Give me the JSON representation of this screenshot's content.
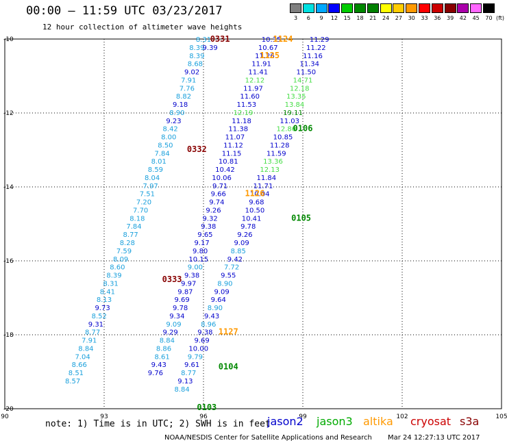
{
  "title": "00:00 – 11:59 UTC 03/23/2017",
  "subtitle": "12 hour collection of altimeter wave heights",
  "colorbar": {
    "labels": [
      "3",
      "6",
      "9",
      "12",
      "15",
      "18",
      "21",
      "24",
      "27",
      "30",
      "33",
      "36",
      "39",
      "42",
      "45",
      "70"
    ],
    "colors": [
      "#808080",
      "#00e0e0",
      "#00a8ff",
      "#0000ff",
      "#00cc00",
      "#008800",
      "#008000",
      "#ffff00",
      "#ffcc00",
      "#ff9900",
      "#ff0000",
      "#cc0000",
      "#880000",
      "#aa00aa",
      "#ff66ff",
      "#000000"
    ],
    "unit": "(ft)"
  },
  "note": "note: 1) Time is in UTC; 2) SWH is in feet",
  "legend": [
    {
      "name": "jason2",
      "color": "#0000cc"
    },
    {
      "name": "jason3",
      "color": "#00aa00"
    },
    {
      "name": "altika",
      "color": "#ff9900"
    },
    {
      "name": "cryosat",
      "color": "#cc0000"
    },
    {
      "name": "s3a",
      "color": "#880000"
    }
  ],
  "footer_center": "NOAA/NESDIS Center for Satellite Applications and Research",
  "footer_right": "Mar 24 12:27:13 UTC 2017",
  "chart_data": {
    "type": "scatter",
    "title": "00:00 – 11:59 UTC 03/23/2017",
    "subtitle": "12 hour collection of altimeter wave heights",
    "xlabel": "",
    "ylabel": "",
    "xlim": [
      90,
      105
    ],
    "ylim": [
      -20,
      -10
    ],
    "xticks": [
      90,
      93,
      96,
      99,
      102,
      105
    ],
    "yticks": [
      -10,
      -12,
      -14,
      -16,
      -18,
      -20
    ],
    "xtick_labels": [
      "90",
      "93",
      "96",
      "99",
      "102",
      "105"
    ],
    "ytick_labels": [
      "-10",
      "-12",
      "-14",
      "-16",
      "-18",
      "-20"
    ],
    "grid": true,
    "point_colors": {
      "j2": "#0000cc",
      "j3": "#44dd44",
      "cyan": "#1aa0dc",
      "alt": "#ff9900"
    },
    "points": [
      {
        "x": 96.0,
        "y": -10.0,
        "v": "8.31",
        "c": "cyan"
      },
      {
        "x": 95.8,
        "y": -10.22,
        "v": "8.39",
        "c": "cyan"
      },
      {
        "x": 95.8,
        "y": -10.44,
        "v": "8.39",
        "c": "cyan"
      },
      {
        "x": 95.75,
        "y": -10.66,
        "v": "8.68",
        "c": "cyan"
      },
      {
        "x": 95.65,
        "y": -10.88,
        "v": "9.02",
        "c": "j2"
      },
      {
        "x": 95.55,
        "y": -11.1,
        "v": "7.91",
        "c": "cyan"
      },
      {
        "x": 95.5,
        "y": -11.32,
        "v": "7.76",
        "c": "cyan"
      },
      {
        "x": 95.4,
        "y": -11.54,
        "v": "8.82",
        "c": "cyan"
      },
      {
        "x": 95.3,
        "y": -11.76,
        "v": "9.18",
        "c": "j2"
      },
      {
        "x": 95.2,
        "y": -11.98,
        "v": "8.90",
        "c": "cyan"
      },
      {
        "x": 95.1,
        "y": -12.2,
        "v": "9.23",
        "c": "j2"
      },
      {
        "x": 95.0,
        "y": -12.42,
        "v": "8.42",
        "c": "cyan"
      },
      {
        "x": 94.95,
        "y": -12.64,
        "v": "8.00",
        "c": "cyan"
      },
      {
        "x": 94.85,
        "y": -12.86,
        "v": "8.50",
        "c": "cyan"
      },
      {
        "x": 94.75,
        "y": -13.08,
        "v": "7.84",
        "c": "cyan"
      },
      {
        "x": 94.65,
        "y": -13.3,
        "v": "8.01",
        "c": "cyan"
      },
      {
        "x": 94.55,
        "y": -13.52,
        "v": "8.59",
        "c": "cyan"
      },
      {
        "x": 94.45,
        "y": -13.74,
        "v": "8.04",
        "c": "cyan"
      },
      {
        "x": 94.4,
        "y": -13.96,
        "v": "7.97",
        "c": "cyan"
      },
      {
        "x": 94.3,
        "y": -14.18,
        "v": "7.51",
        "c": "cyan"
      },
      {
        "x": 94.2,
        "y": -14.4,
        "v": "7.20",
        "c": "cyan"
      },
      {
        "x": 94.1,
        "y": -14.62,
        "v": "7.70",
        "c": "cyan"
      },
      {
        "x": 94.0,
        "y": -14.84,
        "v": "8.18",
        "c": "cyan"
      },
      {
        "x": 93.9,
        "y": -15.06,
        "v": "7.84",
        "c": "cyan"
      },
      {
        "x": 93.8,
        "y": -15.28,
        "v": "8.77",
        "c": "cyan"
      },
      {
        "x": 93.7,
        "y": -15.5,
        "v": "8.28",
        "c": "cyan"
      },
      {
        "x": 93.6,
        "y": -15.72,
        "v": "7.59",
        "c": "cyan"
      },
      {
        "x": 93.5,
        "y": -15.94,
        "v": "8.09",
        "c": "cyan"
      },
      {
        "x": 93.4,
        "y": -16.16,
        "v": "8.60",
        "c": "cyan"
      },
      {
        "x": 93.3,
        "y": -16.38,
        "v": "8.39",
        "c": "cyan"
      },
      {
        "x": 93.2,
        "y": -16.6,
        "v": "8.31",
        "c": "cyan"
      },
      {
        "x": 93.1,
        "y": -16.82,
        "v": "8.41",
        "c": "cyan"
      },
      {
        "x": 93.0,
        "y": -17.04,
        "v": "8.13",
        "c": "cyan"
      },
      {
        "x": 92.95,
        "y": -17.26,
        "v": "9.73",
        "c": "j2"
      },
      {
        "x": 92.85,
        "y": -17.48,
        "v": "8.52",
        "c": "cyan"
      },
      {
        "x": 92.75,
        "y": -17.7,
        "v": "9.31",
        "c": "j2"
      },
      {
        "x": 92.65,
        "y": -17.92,
        "v": "8.77",
        "c": "cyan"
      },
      {
        "x": 92.55,
        "y": -18.14,
        "v": "7.91",
        "c": "cyan"
      },
      {
        "x": 92.45,
        "y": -18.36,
        "v": "8.84",
        "c": "cyan"
      },
      {
        "x": 92.35,
        "y": -18.58,
        "v": "7.04",
        "c": "cyan"
      },
      {
        "x": 92.25,
        "y": -18.8,
        "v": "8.66",
        "c": "cyan"
      },
      {
        "x": 92.15,
        "y": -19.02,
        "v": "8.51",
        "c": "cyan"
      },
      {
        "x": 92.05,
        "y": -19.24,
        "v": "8.57",
        "c": "cyan"
      },
      {
        "x": 96.2,
        "y": -10.22,
        "v": "9.39",
        "c": "j2"
      },
      {
        "x": 98.05,
        "y": -10.0,
        "v": "10.35",
        "c": "j2"
      },
      {
        "x": 97.95,
        "y": -10.22,
        "v": "10.67",
        "c": "j2"
      },
      {
        "x": 97.85,
        "y": -10.44,
        "v": "11.26",
        "c": "j2"
      },
      {
        "x": 97.75,
        "y": -10.66,
        "v": "11.91",
        "c": "j2"
      },
      {
        "x": 97.65,
        "y": -10.88,
        "v": "11.41",
        "c": "j2"
      },
      {
        "x": 97.55,
        "y": -11.1,
        "v": "12.12",
        "c": "j3"
      },
      {
        "x": 97.5,
        "y": -11.32,
        "v": "11.97",
        "c": "j2"
      },
      {
        "x": 97.4,
        "y": -11.54,
        "v": "11.60",
        "c": "j2"
      },
      {
        "x": 97.3,
        "y": -11.76,
        "v": "11.53",
        "c": "j2"
      },
      {
        "x": 97.2,
        "y": -11.98,
        "v": "12.19",
        "c": "j3"
      },
      {
        "x": 97.15,
        "y": -12.2,
        "v": "11.18",
        "c": "j2"
      },
      {
        "x": 97.05,
        "y": -12.42,
        "v": "11.38",
        "c": "j2"
      },
      {
        "x": 96.95,
        "y": -12.64,
        "v": "11.07",
        "c": "j2"
      },
      {
        "x": 96.9,
        "y": -12.86,
        "v": "11.12",
        "c": "j2"
      },
      {
        "x": 96.85,
        "y": -13.08,
        "v": "11.15",
        "c": "j2"
      },
      {
        "x": 96.75,
        "y": -13.3,
        "v": "10.81",
        "c": "j2"
      },
      {
        "x": 96.65,
        "y": -13.52,
        "v": "10.42",
        "c": "j2"
      },
      {
        "x": 96.55,
        "y": -13.74,
        "v": "10.06",
        "c": "j2"
      },
      {
        "x": 96.5,
        "y": -13.96,
        "v": "9.71",
        "c": "j2"
      },
      {
        "x": 96.45,
        "y": -14.18,
        "v": "9.66",
        "c": "j2"
      },
      {
        "x": 96.4,
        "y": -14.4,
        "v": "9.74",
        "c": "j2"
      },
      {
        "x": 96.3,
        "y": -14.62,
        "v": "9.26",
        "c": "j2"
      },
      {
        "x": 96.2,
        "y": -14.84,
        "v": "9.32",
        "c": "j2"
      },
      {
        "x": 96.15,
        "y": -15.06,
        "v": "9.38",
        "c": "j2"
      },
      {
        "x": 96.05,
        "y": -15.28,
        "v": "9.65",
        "c": "j2"
      },
      {
        "x": 95.95,
        "y": -15.5,
        "v": "9.17",
        "c": "j2"
      },
      {
        "x": 95.9,
        "y": -15.72,
        "v": "9.80",
        "c": "j2"
      },
      {
        "x": 95.85,
        "y": -15.94,
        "v": "10.15",
        "c": "j2"
      },
      {
        "x": 95.75,
        "y": -16.16,
        "v": "9.00",
        "c": "cyan"
      },
      {
        "x": 95.65,
        "y": -16.38,
        "v": "9.38",
        "c": "j2"
      },
      {
        "x": 95.55,
        "y": -16.6,
        "v": "9.97",
        "c": "j2"
      },
      {
        "x": 95.45,
        "y": -16.82,
        "v": "9.87",
        "c": "j2"
      },
      {
        "x": 95.35,
        "y": -17.04,
        "v": "9.69",
        "c": "j2"
      },
      {
        "x": 95.3,
        "y": -17.26,
        "v": "9.78",
        "c": "j2"
      },
      {
        "x": 95.2,
        "y": -17.48,
        "v": "9.34",
        "c": "j2"
      },
      {
        "x": 95.1,
        "y": -17.7,
        "v": "9.09",
        "c": "cyan"
      },
      {
        "x": 95.0,
        "y": -17.92,
        "v": "9.29",
        "c": "j2"
      },
      {
        "x": 94.9,
        "y": -18.14,
        "v": "8.84",
        "c": "cyan"
      },
      {
        "x": 94.8,
        "y": -18.36,
        "v": "8.86",
        "c": "cyan"
      },
      {
        "x": 94.75,
        "y": -18.58,
        "v": "8.61",
        "c": "cyan"
      },
      {
        "x": 94.65,
        "y": -18.8,
        "v": "9.43",
        "c": "j2"
      },
      {
        "x": 94.55,
        "y": -19.02,
        "v": "9.76",
        "c": "j2"
      },
      {
        "x": 99.5,
        "y": -10.0,
        "v": "11.29",
        "c": "j2"
      },
      {
        "x": 99.4,
        "y": -10.22,
        "v": "11.22",
        "c": "j2"
      },
      {
        "x": 99.3,
        "y": -10.44,
        "v": "11.16",
        "c": "j2"
      },
      {
        "x": 99.2,
        "y": -10.66,
        "v": "11.34",
        "c": "j2"
      },
      {
        "x": 99.1,
        "y": -10.88,
        "v": "11.50",
        "c": "j2"
      },
      {
        "x": 99.0,
        "y": -11.1,
        "v": "14.71",
        "c": "j3"
      },
      {
        "x": 98.9,
        "y": -11.32,
        "v": "12.18",
        "c": "j3"
      },
      {
        "x": 98.8,
        "y": -11.54,
        "v": "13.35",
        "c": "j3"
      },
      {
        "x": 98.75,
        "y": -11.76,
        "v": "13.84",
        "c": "j3"
      },
      {
        "x": 98.7,
        "y": -11.98,
        "v": "19.11",
        "c": "j3dark"
      },
      {
        "x": 98.6,
        "y": -12.2,
        "v": "11.03",
        "c": "j2"
      },
      {
        "x": 98.5,
        "y": -12.42,
        "v": "12.86",
        "c": "j3"
      },
      {
        "x": 98.4,
        "y": -12.64,
        "v": "10.85",
        "c": "j2"
      },
      {
        "x": 98.3,
        "y": -12.86,
        "v": "11.28",
        "c": "j2"
      },
      {
        "x": 98.2,
        "y": -13.08,
        "v": "11.59",
        "c": "j2"
      },
      {
        "x": 98.1,
        "y": -13.3,
        "v": "13.36",
        "c": "j3"
      },
      {
        "x": 98.0,
        "y": -13.52,
        "v": "12.13",
        "c": "j3"
      },
      {
        "x": 97.9,
        "y": -13.74,
        "v": "11.84",
        "c": "j2"
      },
      {
        "x": 97.8,
        "y": -13.96,
        "v": "11.71",
        "c": "j2"
      },
      {
        "x": 97.7,
        "y": -14.18,
        "v": "10.04",
        "c": "j2"
      },
      {
        "x": 97.6,
        "y": -14.4,
        "v": "9.68",
        "c": "j2"
      },
      {
        "x": 97.55,
        "y": -14.62,
        "v": "10.50",
        "c": "j2"
      },
      {
        "x": 97.45,
        "y": -14.84,
        "v": "10.41",
        "c": "j2"
      },
      {
        "x": 97.35,
        "y": -15.06,
        "v": "9.78",
        "c": "j2"
      },
      {
        "x": 97.25,
        "y": -15.28,
        "v": "9.26",
        "c": "j2"
      },
      {
        "x": 97.15,
        "y": -15.5,
        "v": "9.09",
        "c": "j2"
      },
      {
        "x": 97.05,
        "y": -15.72,
        "v": "8.85",
        "c": "cyan"
      },
      {
        "x": 96.95,
        "y": -15.94,
        "v": "9.42",
        "c": "j2"
      },
      {
        "x": 96.85,
        "y": -16.16,
        "v": "7.72",
        "c": "cyan"
      },
      {
        "x": 96.75,
        "y": -16.38,
        "v": "9.55",
        "c": "j2"
      },
      {
        "x": 96.65,
        "y": -16.6,
        "v": "8.90",
        "c": "cyan"
      },
      {
        "x": 96.55,
        "y": -16.82,
        "v": "9.09",
        "c": "j2"
      },
      {
        "x": 96.45,
        "y": -17.04,
        "v": "9.64",
        "c": "j2"
      },
      {
        "x": 96.35,
        "y": -17.26,
        "v": "8.90",
        "c": "cyan"
      },
      {
        "x": 96.25,
        "y": -17.48,
        "v": "9.43",
        "c": "j2"
      },
      {
        "x": 96.15,
        "y": -17.7,
        "v": "8.96",
        "c": "cyan"
      },
      {
        "x": 96.05,
        "y": -17.92,
        "v": "9.38",
        "c": "j2"
      },
      {
        "x": 95.95,
        "y": -18.14,
        "v": "9.69",
        "c": "j2"
      },
      {
        "x": 95.85,
        "y": -18.36,
        "v": "10.00",
        "c": "j2"
      },
      {
        "x": 95.75,
        "y": -18.58,
        "v": "9.79",
        "c": "cyan"
      },
      {
        "x": 95.65,
        "y": -18.8,
        "v": "9.61",
        "c": "j2"
      },
      {
        "x": 95.55,
        "y": -19.02,
        "v": "8.77",
        "c": "cyan"
      },
      {
        "x": 95.45,
        "y": -19.24,
        "v": "9.13",
        "c": "j2"
      },
      {
        "x": 95.35,
        "y": -19.46,
        "v": "8.84",
        "c": "cyan"
      }
    ],
    "pass_labels": [
      {
        "x": 96.5,
        "y": -10.0,
        "t": "0331",
        "c": "#880000"
      },
      {
        "x": 98.4,
        "y": -10.0,
        "t": "1124",
        "c": "#ff9900"
      },
      {
        "x": 98.0,
        "y": -10.44,
        "t": "1125",
        "c": "#ff9900"
      },
      {
        "x": 95.8,
        "y": -12.98,
        "t": "0332",
        "c": "#880000"
      },
      {
        "x": 99.0,
        "y": -12.42,
        "t": "0106",
        "c": "#008800"
      },
      {
        "x": 97.55,
        "y": -14.18,
        "t": "1126",
        "c": "#ff9900"
      },
      {
        "x": 98.95,
        "y": -14.84,
        "t": "0105",
        "c": "#008800"
      },
      {
        "x": 95.05,
        "y": -16.5,
        "t": "0333",
        "c": "#880000"
      },
      {
        "x": 96.75,
        "y": -17.92,
        "t": "1127",
        "c": "#ff9900"
      },
      {
        "x": 96.75,
        "y": -18.86,
        "t": "0104",
        "c": "#008800"
      },
      {
        "x": 96.1,
        "y": -19.96,
        "t": "0103",
        "c": "#008800"
      }
    ]
  }
}
